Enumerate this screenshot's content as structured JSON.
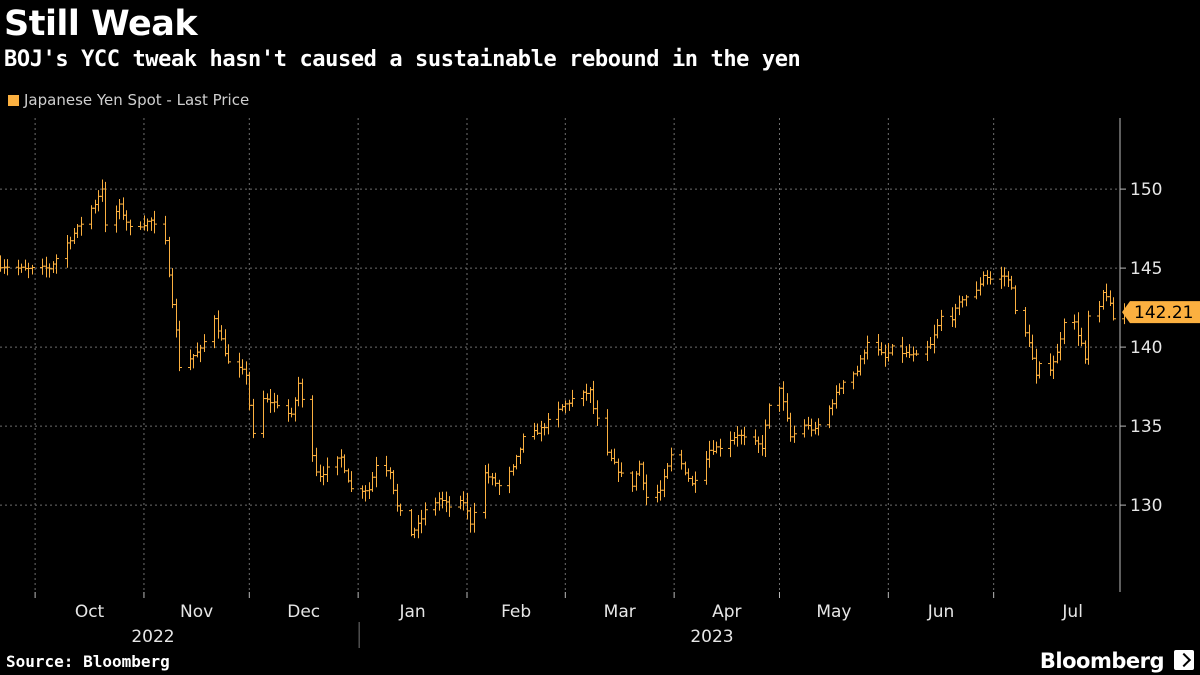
{
  "header": {
    "title": "Still Weak",
    "subtitle": "BOJ's YCC tweak hasn't caused a sustainable rebound in the yen"
  },
  "footer": {
    "source": "Source: Bloomberg",
    "brand": "Bloomberg"
  },
  "colors": {
    "series": "#fbb040",
    "grid": "#6e6e6e",
    "axis_text": "#e6e6e6",
    "background": "#000000"
  },
  "chart_data": {
    "type": "ohlc",
    "title": "Still Weak",
    "subtitle": "BOJ's YCC tweak hasn't caused a sustainable rebound in the yen",
    "series_name": "Japanese Yen Spot - Last Price",
    "last_value_label": "142.21",
    "ylim": [
      124.5,
      154.5
    ],
    "yticks": [
      130,
      135,
      140,
      145,
      150
    ],
    "y_axis_position": "right",
    "grid": true,
    "legend_position": "top-left",
    "x_months": [
      {
        "label": "Oct",
        "date": "2022-10-01"
      },
      {
        "label": "Nov",
        "date": "2022-11-01"
      },
      {
        "label": "Dec",
        "date": "2022-12-01"
      },
      {
        "label": "Jan",
        "date": "2023-01-01"
      },
      {
        "label": "Feb",
        "date": "2023-02-01"
      },
      {
        "label": "Mar",
        "date": "2023-03-01"
      },
      {
        "label": "Apr",
        "date": "2023-04-01"
      },
      {
        "label": "May",
        "date": "2023-05-01"
      },
      {
        "label": "Jun",
        "date": "2023-06-01"
      },
      {
        "label": "Jul",
        "date": "2023-07-01"
      }
    ],
    "x_years": [
      {
        "label": "2022"
      },
      {
        "label": "2023"
      }
    ],
    "x_range": [
      "2022-09-21",
      "2023-07-31"
    ],
    "price_path": [
      [
        "2022-09-21",
        145.2
      ],
      [
        "2022-09-28",
        144.9
      ],
      [
        "2022-10-05",
        145.0
      ],
      [
        "2022-10-12",
        147.2
      ],
      [
        "2022-10-18",
        149.1
      ],
      [
        "2022-10-20",
        150.1
      ],
      [
        "2022-10-21",
        147.6
      ],
      [
        "2022-10-25",
        148.9
      ],
      [
        "2022-10-28",
        147.5
      ],
      [
        "2022-11-03",
        148.0
      ],
      [
        "2022-11-07",
        146.6
      ],
      [
        "2022-11-10",
        141.0
      ],
      [
        "2022-11-11",
        138.8
      ],
      [
        "2022-11-17",
        139.8
      ],
      [
        "2022-11-21",
        141.9
      ],
      [
        "2022-11-25",
        139.0
      ],
      [
        "2022-11-30",
        138.3
      ],
      [
        "2022-12-02",
        134.4
      ],
      [
        "2022-12-05",
        136.7
      ],
      [
        "2022-12-09",
        136.4
      ],
      [
        "2022-12-13",
        135.6
      ],
      [
        "2022-12-15",
        137.7
      ],
      [
        "2022-12-20",
        132.2
      ],
      [
        "2022-12-21",
        131.9
      ],
      [
        "2022-12-27",
        133.0
      ],
      [
        "2022-12-30",
        131.0
      ],
      [
        "2023-01-04",
        131.0
      ],
      [
        "2023-01-06",
        132.6
      ],
      [
        "2023-01-10",
        132.2
      ],
      [
        "2023-01-12",
        129.9
      ],
      [
        "2023-01-16",
        128.2
      ],
      [
        "2023-01-18",
        128.7
      ],
      [
        "2023-01-20",
        129.6
      ],
      [
        "2023-01-24",
        130.4
      ],
      [
        "2023-01-27",
        129.9
      ],
      [
        "2023-01-31",
        130.2
      ],
      [
        "2023-02-02",
        128.9
      ],
      [
        "2023-02-06",
        132.0
      ],
      [
        "2023-02-10",
        131.2
      ],
      [
        "2023-02-14",
        132.3
      ],
      [
        "2023-02-17",
        134.2
      ],
      [
        "2023-02-22",
        134.8
      ],
      [
        "2023-02-28",
        136.2
      ],
      [
        "2023-03-03",
        136.7
      ],
      [
        "2023-03-08",
        137.2
      ],
      [
        "2023-03-09",
        136.1
      ],
      [
        "2023-03-13",
        133.2
      ],
      [
        "2023-03-17",
        131.9
      ],
      [
        "2023-03-20",
        131.3
      ],
      [
        "2023-03-22",
        132.6
      ],
      [
        "2023-03-24",
        130.5
      ],
      [
        "2023-03-28",
        130.9
      ],
      [
        "2023-03-31",
        133.1
      ],
      [
        "2023-04-03",
        132.6
      ],
      [
        "2023-04-06",
        131.3
      ],
      [
        "2023-04-11",
        133.5
      ],
      [
        "2023-04-14",
        133.7
      ],
      [
        "2023-04-19",
        134.5
      ],
      [
        "2023-04-21",
        134.2
      ],
      [
        "2023-04-26",
        133.7
      ],
      [
        "2023-04-28",
        136.2
      ],
      [
        "2023-05-01",
        137.5
      ],
      [
        "2023-05-04",
        134.3
      ],
      [
        "2023-05-08",
        135.1
      ],
      [
        "2023-05-11",
        134.7
      ],
      [
        "2023-05-15",
        136.1
      ],
      [
        "2023-05-19",
        137.9
      ],
      [
        "2023-05-23",
        138.5
      ],
      [
        "2023-05-26",
        140.4
      ],
      [
        "2023-05-31",
        139.3
      ],
      [
        "2023-06-02",
        139.9
      ],
      [
        "2023-06-07",
        139.5
      ],
      [
        "2023-06-09",
        139.4
      ],
      [
        "2023-06-13",
        140.1
      ],
      [
        "2023-06-16",
        141.9
      ],
      [
        "2023-06-19",
        141.9
      ],
      [
        "2023-06-22",
        143.1
      ],
      [
        "2023-06-26",
        143.5
      ],
      [
        "2023-06-28",
        144.6
      ],
      [
        "2023-06-30",
        144.3
      ],
      [
        "2023-07-04",
        144.5
      ],
      [
        "2023-07-06",
        143.9
      ],
      [
        "2023-07-07",
        142.2
      ],
      [
        "2023-07-11",
        140.4
      ],
      [
        "2023-07-13",
        138.1
      ],
      [
        "2023-07-14",
        138.8
      ],
      [
        "2023-07-17",
        138.7
      ],
      [
        "2023-07-19",
        139.6
      ],
      [
        "2023-07-21",
        141.7
      ],
      [
        "2023-07-24",
        141.5
      ],
      [
        "2023-07-26",
        140.2
      ],
      [
        "2023-07-27",
        139.1
      ],
      [
        "2023-07-28",
        141.9
      ],
      [
        "2023-07-31",
        142.4
      ],
      [
        "2023-08-01",
        143.4
      ],
      [
        "2023-08-02",
        143.3
      ],
      [
        "2023-08-03",
        142.6
      ],
      [
        "2023-08-04",
        141.8
      ],
      [
        "2023-08-07",
        142.21
      ]
    ]
  }
}
